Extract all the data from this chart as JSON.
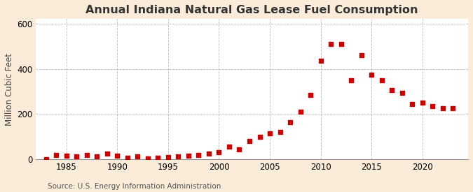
{
  "title": "Annual Indiana Natural Gas Lease Fuel Consumption",
  "ylabel": "Million Cubic Feet",
  "source": "Source: U.S. Energy Information Administration",
  "background_color": "#faecd8",
  "plot_background_color": "#ffffff",
  "marker_color": "#cc0000",
  "years": [
    1983,
    1984,
    1985,
    1986,
    1987,
    1988,
    1989,
    1990,
    1991,
    1992,
    1993,
    1994,
    1995,
    1996,
    1997,
    1998,
    1999,
    2000,
    2001,
    2002,
    2003,
    2004,
    2005,
    2006,
    2007,
    2008,
    2009,
    2010,
    2011,
    2012,
    2013,
    2014,
    2015,
    2016,
    2017,
    2018,
    2019,
    2020,
    2021,
    2022,
    2023
  ],
  "values": [
    2,
    20,
    15,
    12,
    18,
    12,
    25,
    15,
    8,
    12,
    5,
    8,
    10,
    12,
    15,
    20,
    25,
    30,
    55,
    45,
    80,
    100,
    115,
    120,
    165,
    210,
    285,
    435,
    510,
    510,
    350,
    460,
    375,
    350,
    305,
    295,
    245,
    250,
    235,
    225,
    225
  ],
  "xlim": [
    1982,
    2024.5
  ],
  "ylim": [
    0,
    620
  ],
  "yticks": [
    0,
    200,
    400,
    600
  ],
  "xticks": [
    1985,
    1990,
    1995,
    2000,
    2005,
    2010,
    2015,
    2020
  ],
  "grid_color": "#bbbbbb",
  "title_fontsize": 11.5,
  "label_fontsize": 8.5,
  "tick_fontsize": 8.5,
  "source_fontsize": 7.5
}
